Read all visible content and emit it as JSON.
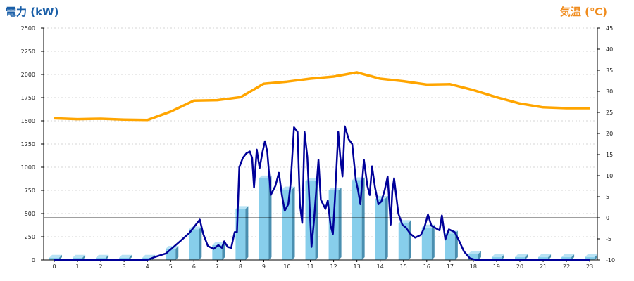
{
  "colors": {
    "power_title": "#1a5fa8",
    "temp_title": "#f08c1e",
    "bar": "#87ceeb",
    "bar_side": "#4a8fb0",
    "bar_top": "#b8e3f5",
    "power_line": "#000099",
    "temp_line": "#ffa500",
    "grid": "#c8c8c8",
    "zero_line": "#000000"
  },
  "chart_data": {
    "type": "bar+line",
    "left_axis": {
      "title": "電力 (kW)",
      "min": 0,
      "max": 2500,
      "ticks": [
        0,
        250,
        500,
        750,
        1000,
        1250,
        1500,
        1750,
        2000,
        2250,
        2500
      ]
    },
    "right_axis": {
      "title": "気温 (℃)",
      "min": -10,
      "max": 45,
      "ticks": [
        -10,
        -5,
        0,
        5,
        10,
        15,
        20,
        25,
        30,
        35,
        40,
        45
      ]
    },
    "x_axis": {
      "ticks": [
        "0",
        "1",
        "2",
        "3",
        "4",
        "5",
        "6",
        "7",
        "8",
        "9",
        "10",
        "11",
        "12",
        "13",
        "14",
        "15",
        "16",
        "17",
        "18",
        "19",
        "20",
        "21",
        "22",
        "23"
      ]
    },
    "grid": true,
    "bars": {
      "values": [
        25,
        25,
        25,
        25,
        25,
        120,
        330,
        160,
        550,
        880,
        760,
        850,
        750,
        860,
        660,
        400,
        350,
        285,
        65,
        30,
        30,
        30,
        30,
        30
      ]
    },
    "power_line": {
      "points": [
        [
          0,
          0
        ],
        [
          1,
          0
        ],
        [
          2,
          0
        ],
        [
          3,
          0
        ],
        [
          4,
          0
        ],
        [
          4.3,
          30
        ],
        [
          4.8,
          70
        ],
        [
          5.4,
          200
        ],
        [
          5.8,
          290
        ],
        [
          6.25,
          435
        ],
        [
          6.4,
          280
        ],
        [
          6.6,
          150
        ],
        [
          6.85,
          120
        ],
        [
          7.05,
          160
        ],
        [
          7.2,
          130
        ],
        [
          7.3,
          200
        ],
        [
          7.45,
          140
        ],
        [
          7.6,
          130
        ],
        [
          7.75,
          300
        ],
        [
          7.85,
          300
        ],
        [
          7.95,
          1000
        ],
        [
          8.1,
          1100
        ],
        [
          8.25,
          1150
        ],
        [
          8.4,
          1170
        ],
        [
          8.5,
          1100
        ],
        [
          8.58,
          780
        ],
        [
          8.7,
          1190
        ],
        [
          8.82,
          990
        ],
        [
          8.95,
          1170
        ],
        [
          9.05,
          1280
        ],
        [
          9.15,
          1170
        ],
        [
          9.3,
          700
        ],
        [
          9.5,
          800
        ],
        [
          9.65,
          940
        ],
        [
          9.78,
          700
        ],
        [
          9.9,
          530
        ],
        [
          10.05,
          600
        ],
        [
          10.15,
          820
        ],
        [
          10.3,
          1430
        ],
        [
          10.45,
          1380
        ],
        [
          10.55,
          600
        ],
        [
          10.65,
          400
        ],
        [
          10.75,
          1380
        ],
        [
          10.87,
          1110
        ],
        [
          11.05,
          140
        ],
        [
          11.15,
          400
        ],
        [
          11.35,
          1080
        ],
        [
          11.45,
          650
        ],
        [
          11.55,
          600
        ],
        [
          11.65,
          550
        ],
        [
          11.75,
          640
        ],
        [
          11.87,
          370
        ],
        [
          11.97,
          280
        ],
        [
          12.05,
          640
        ],
        [
          12.2,
          1380
        ],
        [
          12.28,
          1120
        ],
        [
          12.38,
          900
        ],
        [
          12.48,
          1440
        ],
        [
          12.65,
          1300
        ],
        [
          12.8,
          1250
        ],
        [
          12.95,
          870
        ],
        [
          13.05,
          750
        ],
        [
          13.15,
          600
        ],
        [
          13.3,
          1080
        ],
        [
          13.45,
          800
        ],
        [
          13.55,
          700
        ],
        [
          13.65,
          1010
        ],
        [
          13.78,
          780
        ],
        [
          13.92,
          600
        ],
        [
          14.05,
          630
        ],
        [
          14.2,
          760
        ],
        [
          14.32,
          900
        ],
        [
          14.45,
          380
        ],
        [
          14.52,
          740
        ],
        [
          14.6,
          880
        ],
        [
          14.78,
          500
        ],
        [
          14.95,
          380
        ],
        [
          15.1,
          350
        ],
        [
          15.3,
          280
        ],
        [
          15.5,
          240
        ],
        [
          15.75,
          270
        ],
        [
          15.9,
          350
        ],
        [
          16.05,
          490
        ],
        [
          16.2,
          370
        ],
        [
          16.4,
          340
        ],
        [
          16.55,
          320
        ],
        [
          16.65,
          480
        ],
        [
          16.8,
          220
        ],
        [
          16.95,
          330
        ],
        [
          17.2,
          300
        ],
        [
          17.4,
          200
        ],
        [
          17.6,
          90
        ],
        [
          17.85,
          20
        ],
        [
          18.1,
          0
        ],
        [
          19,
          0
        ],
        [
          20,
          0
        ],
        [
          21,
          0
        ],
        [
          22,
          0
        ],
        [
          23,
          0
        ]
      ]
    },
    "temp_line": {
      "points": [
        [
          0,
          23.6
        ],
        [
          1,
          23.4
        ],
        [
          2,
          23.5
        ],
        [
          3,
          23.3
        ],
        [
          4,
          23.2
        ],
        [
          5,
          25.2
        ],
        [
          6,
          27.8
        ],
        [
          7,
          27.9
        ],
        [
          8,
          28.6
        ],
        [
          9,
          31.8
        ],
        [
          10,
          32.3
        ],
        [
          11,
          33.0
        ],
        [
          12,
          33.5
        ],
        [
          13,
          34.5
        ],
        [
          14,
          33.0
        ],
        [
          15,
          32.4
        ],
        [
          16,
          31.6
        ],
        [
          17,
          31.7
        ],
        [
          18,
          30.3
        ],
        [
          19,
          28.6
        ],
        [
          20,
          27.1
        ],
        [
          21,
          26.2
        ],
        [
          22,
          26.0
        ],
        [
          23,
          26.0
        ]
      ]
    }
  }
}
